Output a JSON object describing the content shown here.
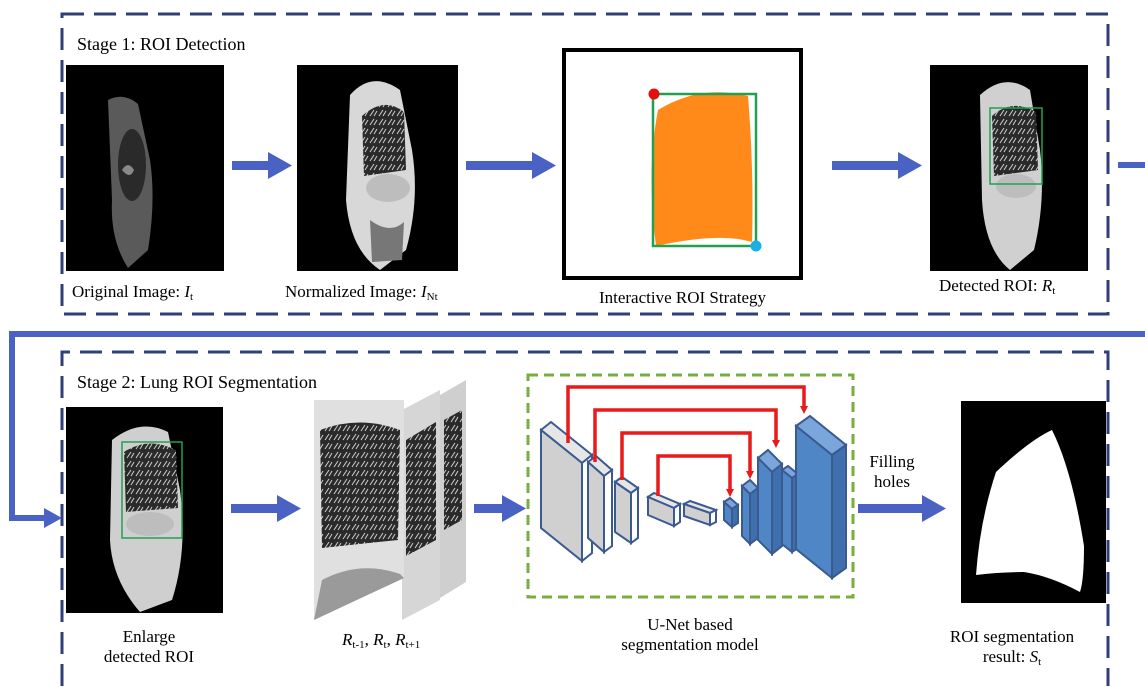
{
  "stage1": {
    "title": "Stage 1: ROI Detection",
    "original": {
      "text": "Original Image: ",
      "var": "I",
      "sub": "t"
    },
    "normalized": {
      "text": "Normalized Image: ",
      "var": "I",
      "sub": "Nt"
    },
    "interactive": "Interactive ROI Strategy",
    "detected": {
      "text": "Detected ROI: ",
      "var": "R",
      "sub": "t"
    }
  },
  "stage2": {
    "title": "Stage 2: Lung ROI Segmentation",
    "enlarge_line1": "Enlarge",
    "enlarge_line2": "detected ROI",
    "sequence": {
      "var": "R",
      "subs": [
        "t-1",
        "t",
        "t+1"
      ],
      "sep": ", "
    },
    "model_line1": "U-Net based",
    "model_line2": "segmentation model",
    "filling_line1": "Filling",
    "filling_line2": "holes",
    "result_line1": "ROI segmentation",
    "result_line2": "result: ",
    "result_var": "S",
    "result_sub": "t"
  },
  "colors": {
    "dashed_border": "#2f3f7a",
    "arrow_blue": "#4a62c4",
    "roi_box": "#22a050",
    "lung_fill": "#ff8a1a",
    "red_dot": "#e01010",
    "cyan_dot": "#19b0e6",
    "unet_dash": "#7aae3c",
    "skip_red": "#e81a1a",
    "enc_fill": "#d0d0d0",
    "dec_fill": "#4f86c6"
  }
}
